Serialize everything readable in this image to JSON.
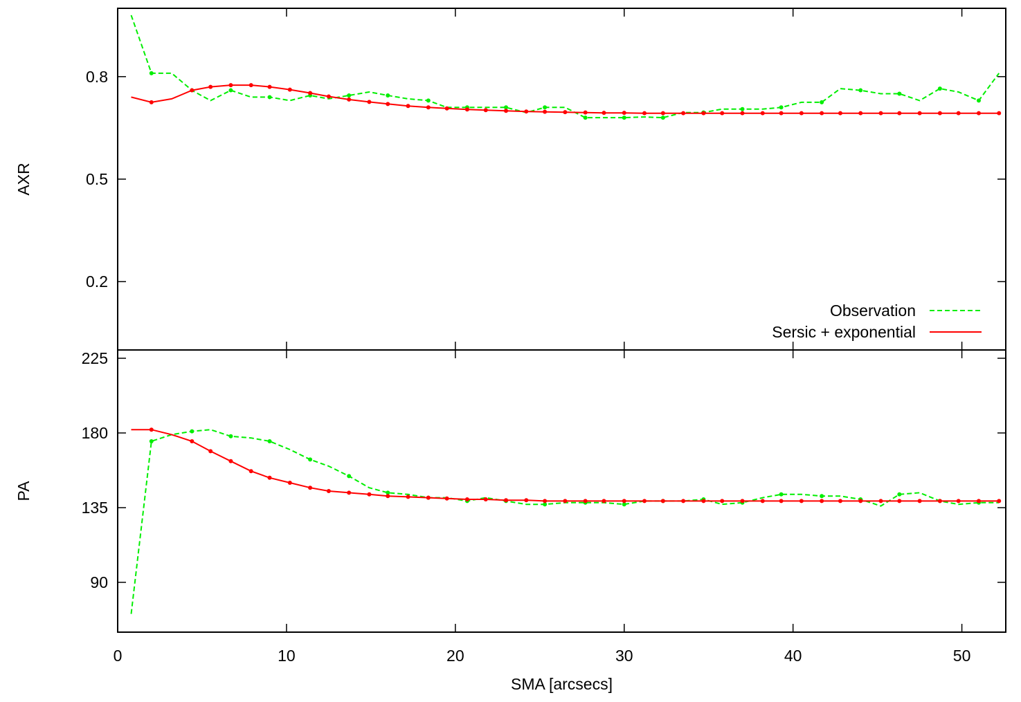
{
  "chart_data": [
    {
      "type": "line",
      "ylabel": "AXR",
      "xlim": [
        0,
        52.6
      ],
      "ylim": [
        0,
        1.0
      ],
      "yticks": [
        0.2,
        0.5,
        0.8
      ],
      "ytick_labels": [
        "0.2",
        "0.5",
        "0.8"
      ],
      "xticks": [
        0,
        10,
        20,
        30,
        40,
        50
      ],
      "legend": {
        "position": "bottom-right",
        "entries": [
          "Observation",
          "Sersic + exponential"
        ]
      },
      "series": [
        {
          "name": "Observation",
          "color": "#00ee00",
          "style": "dashed",
          "x": [
            0.8,
            2.0,
            3.2,
            4.4,
            5.5,
            6.7,
            7.9,
            9.0,
            10.2,
            11.4,
            12.5,
            13.7,
            14.9,
            16.0,
            17.2,
            18.4,
            19.5,
            20.7,
            21.8,
            23.0,
            24.2,
            25.3,
            26.5,
            27.7,
            28.8,
            30.0,
            31.2,
            32.3,
            33.5,
            34.7,
            35.8,
            37.0,
            38.2,
            39.3,
            40.5,
            41.7,
            42.8,
            44.0,
            45.2,
            46.3,
            47.5,
            48.7,
            49.8,
            51.0,
            52.2
          ],
          "values": [
            0.98,
            0.81,
            0.81,
            0.76,
            0.73,
            0.76,
            0.74,
            0.74,
            0.73,
            0.745,
            0.735,
            0.745,
            0.755,
            0.745,
            0.735,
            0.73,
            0.71,
            0.71,
            0.71,
            0.71,
            0.695,
            0.71,
            0.71,
            0.68,
            0.68,
            0.68,
            0.682,
            0.68,
            0.695,
            0.695,
            0.705,
            0.705,
            0.705,
            0.71,
            0.725,
            0.725,
            0.765,
            0.76,
            0.75,
            0.75,
            0.73,
            0.765,
            0.755,
            0.73,
            0.81
          ]
        },
        {
          "name": "Sersic + exponential",
          "color": "#ff0000",
          "style": "solid",
          "x": [
            0.8,
            2.0,
            3.2,
            4.4,
            5.5,
            6.7,
            7.9,
            9.0,
            10.2,
            11.4,
            12.5,
            13.7,
            14.9,
            16.0,
            17.2,
            18.4,
            19.5,
            20.7,
            21.8,
            23.0,
            24.2,
            25.3,
            26.5,
            27.7,
            28.8,
            30.0,
            31.2,
            32.3,
            33.5,
            34.7,
            35.8,
            37.0,
            38.2,
            39.3,
            40.5,
            41.7,
            42.8,
            44.0,
            45.2,
            46.3,
            47.5,
            48.7,
            49.8,
            51.0,
            52.2
          ],
          "values": [
            0.74,
            0.725,
            0.735,
            0.76,
            0.77,
            0.775,
            0.775,
            0.77,
            0.762,
            0.752,
            0.742,
            0.733,
            0.726,
            0.72,
            0.714,
            0.71,
            0.707,
            0.704,
            0.702,
            0.7,
            0.698,
            0.697,
            0.696,
            0.695,
            0.694,
            0.694,
            0.693,
            0.693,
            0.693,
            0.693,
            0.693,
            0.693,
            0.693,
            0.693,
            0.693,
            0.693,
            0.693,
            0.693,
            0.693,
            0.693,
            0.693,
            0.693,
            0.693,
            0.693,
            0.693
          ]
        }
      ]
    },
    {
      "type": "line",
      "xlabel": "SMA [arcsecs]",
      "ylabel": "PA",
      "xlim": [
        0,
        52.6
      ],
      "ylim": [
        60,
        230
      ],
      "yticks": [
        90,
        135,
        180,
        225
      ],
      "ytick_labels": [
        "90",
        "135",
        "180",
        "225"
      ],
      "xticks": [
        0,
        10,
        20,
        30,
        40,
        50
      ],
      "xtick_labels": [
        "0",
        "10",
        "20",
        "30",
        "40",
        "50"
      ],
      "series": [
        {
          "name": "Observation",
          "color": "#00ee00",
          "style": "dashed",
          "x": [
            0.8,
            2.0,
            3.2,
            4.4,
            5.5,
            6.7,
            7.9,
            9.0,
            10.2,
            11.4,
            12.5,
            13.7,
            14.9,
            16.0,
            17.2,
            18.4,
            19.5,
            20.7,
            21.8,
            23.0,
            24.2,
            25.3,
            26.5,
            27.7,
            28.8,
            30.0,
            31.2,
            32.3,
            33.5,
            34.7,
            35.8,
            37.0,
            38.2,
            39.3,
            40.5,
            41.7,
            42.8,
            44.0,
            45.2,
            46.3,
            47.5,
            48.7,
            49.8,
            51.0,
            52.2
          ],
          "values": [
            71,
            175,
            179,
            181,
            182,
            178,
            177,
            175,
            170,
            164,
            160,
            154,
            147,
            144,
            143,
            141,
            141,
            139,
            141,
            139,
            137,
            137,
            138,
            138,
            138,
            137,
            139,
            139,
            139,
            140,
            137,
            138,
            141,
            143,
            143,
            142,
            142,
            140,
            136,
            143,
            144,
            139,
            137,
            138,
            138
          ]
        },
        {
          "name": "Sersic + exponential",
          "color": "#ff0000",
          "style": "solid",
          "x": [
            0.8,
            2.0,
            3.2,
            4.4,
            5.5,
            6.7,
            7.9,
            9.0,
            10.2,
            11.4,
            12.5,
            13.7,
            14.9,
            16.0,
            17.2,
            18.4,
            19.5,
            20.7,
            21.8,
            23.0,
            24.2,
            25.3,
            26.5,
            27.7,
            28.8,
            30.0,
            31.2,
            32.3,
            33.5,
            34.7,
            35.8,
            37.0,
            38.2,
            39.3,
            40.5,
            41.7,
            42.8,
            44.0,
            45.2,
            46.3,
            47.5,
            48.7,
            49.8,
            51.0,
            52.2
          ],
          "values": [
            182,
            182,
            179,
            175,
            169,
            163,
            157,
            153,
            150,
            147,
            145,
            144,
            143,
            142,
            141.5,
            141,
            140.5,
            140,
            140,
            139.5,
            139.5,
            139,
            139,
            139,
            139,
            139,
            139,
            139,
            139,
            139,
            139,
            139,
            139,
            139,
            139,
            139,
            139,
            139,
            139,
            139,
            139,
            139,
            139,
            139,
            139
          ]
        }
      ]
    }
  ]
}
